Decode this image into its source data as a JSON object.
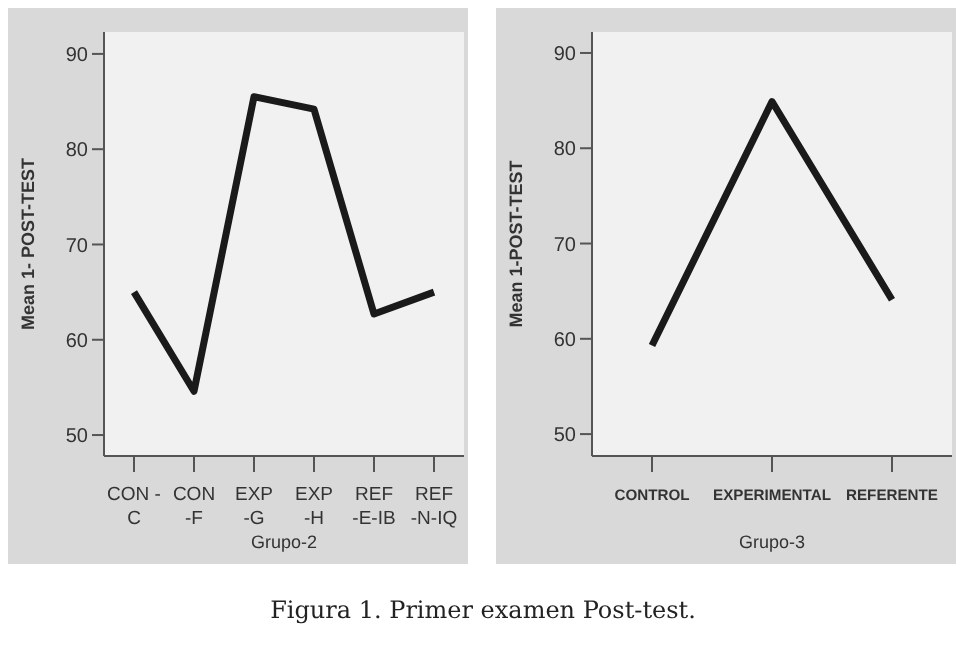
{
  "chart_data": [
    {
      "type": "line",
      "categories": [
        "CON -\nC",
        "CON\n-F",
        "EXP\n-G",
        "EXP\n-H",
        "REF\n-E-IB",
        "REF\n-N-IQ"
      ],
      "values": [
        65,
        54.6,
        85.5,
        84.2,
        62.7,
        65
      ],
      "color": "#1a1a1a",
      "xlabel": "Grupo-2",
      "ylabel": "Mean 1- POST-TEST",
      "ylim": [
        47.8,
        92.3
      ],
      "yticks": [
        50,
        60,
        70,
        80,
        90
      ],
      "marker": "none",
      "annotations": [
        "Figura 1. Primer examen Post-test."
      ]
    },
    {
      "type": "line",
      "categories": [
        "CONTROL",
        "EXPERIMENTAL",
        "REFERENTE"
      ],
      "values": [
        59.3,
        84.9,
        64.1
      ],
      "color": "#1a1a1a",
      "xlabel": "Grupo-3",
      "ylabel": "Mean 1-POST-TEST",
      "ylim": [
        47.7,
        92.2
      ],
      "yticks": [
        50,
        60,
        70,
        80,
        90
      ],
      "marker": "none"
    }
  ]
}
